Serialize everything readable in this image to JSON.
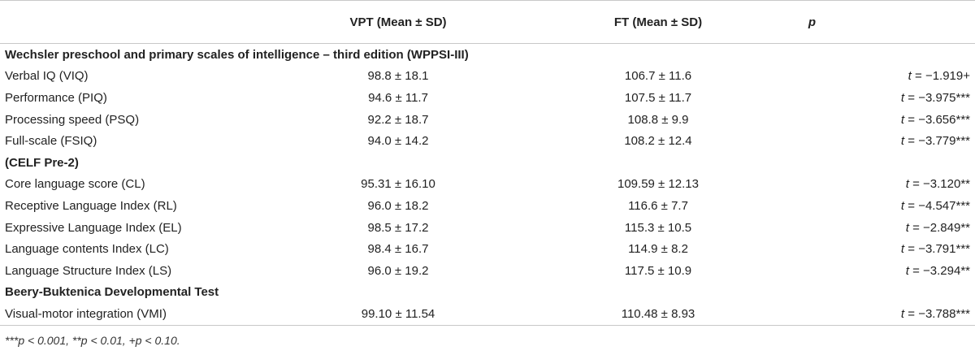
{
  "header": {
    "col1": "VPT (Mean ± SD)",
    "col2": "FT (Mean ± SD)",
    "col3": "p"
  },
  "sections": [
    {
      "title": "Wechsler preschool and primary scales of intelligence – third edition (WPPSI-III)",
      "rows": [
        {
          "name": "Verbal IQ (VIQ)",
          "vpt": "98.8 ± 18.1",
          "ft": "106.7 ± 11.6",
          "t": "t",
          "p": " = −1.919+"
        },
        {
          "name": "Performance (PIQ)",
          "vpt": "94.6 ± 11.7",
          "ft": "107.5 ± 11.7",
          "t": "t",
          "p": " = −3.975***"
        },
        {
          "name": "Processing speed (PSQ)",
          "vpt": "92.2 ± 18.7",
          "ft": "108.8 ± 9.9",
          "t": "t",
          "p": " = −3.656***"
        },
        {
          "name": "Full-scale (FSIQ)",
          "vpt": "94.0 ± 14.2",
          "ft": "108.2 ± 12.4",
          "t": "t",
          "p": " = −3.779***"
        }
      ]
    },
    {
      "title": "(CELF Pre-2)",
      "rows": [
        {
          "name": "Core language score (CL)",
          "vpt": "95.31 ± 16.10",
          "ft": "109.59 ± 12.13",
          "t": "t",
          "p": " = −3.120**"
        },
        {
          "name": "Receptive Language Index (RL)",
          "vpt": "96.0 ± 18.2",
          "ft": "116.6 ± 7.7",
          "t": "t",
          "p": " = −4.547***"
        },
        {
          "name": "Expressive Language Index (EL)",
          "vpt": "98.5 ± 17.2",
          "ft": "115.3 ± 10.5",
          "t": "t",
          "p": " = −2.849**"
        },
        {
          "name": "Language contents Index (LC)",
          "vpt": "98.4 ± 16.7",
          "ft": "114.9 ± 8.2",
          "t": "t",
          "p": " = −3.791***"
        },
        {
          "name": "Language Structure Index (LS)",
          "vpt": "96.0 ± 19.2",
          "ft": "117.5 ± 10.9",
          "t": "t",
          "p": " = −3.294**"
        }
      ]
    },
    {
      "title": "Beery-Buktenica Developmental Test",
      "rows": [
        {
          "name": "Visual-motor integration (VMI)",
          "vpt": "99.10 ± 11.54",
          "ft": "110.48 ± 8.93",
          "t": "t",
          "p": " = −3.788***"
        }
      ]
    }
  ],
  "footnote": "***p < 0.001, **p < 0.01, +p < 0.10."
}
